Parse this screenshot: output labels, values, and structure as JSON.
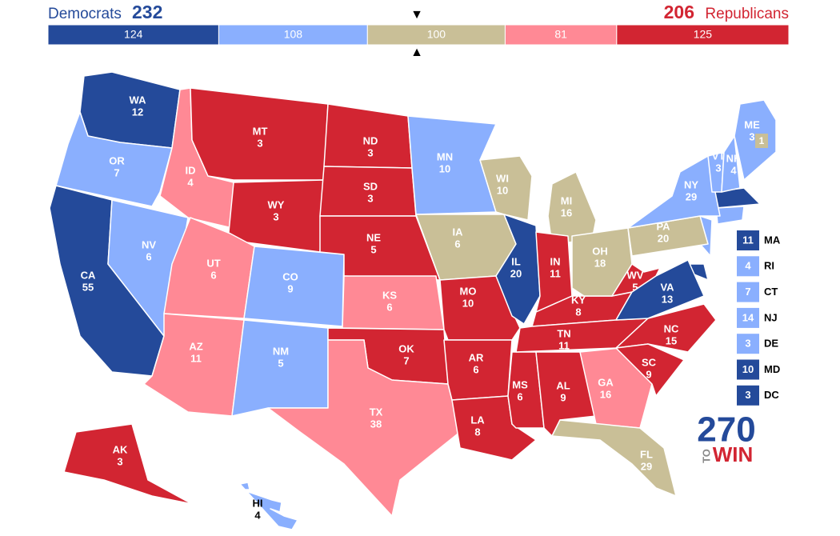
{
  "header": {
    "left_label": "Democrats",
    "left_total": 232,
    "right_total": 206,
    "right_label": "Republicans"
  },
  "bar": {
    "total": 538,
    "segments": [
      {
        "value": 124,
        "color": "#244a9a"
      },
      {
        "value": 108,
        "color": "#8aaffe"
      },
      {
        "value": 100,
        "color": "#c9bf97"
      },
      {
        "value": 81,
        "color": "#ff8995"
      },
      {
        "value": 125,
        "color": "#d22532"
      }
    ]
  },
  "states": [
    {
      "abbr": "WA",
      "votes": 12,
      "color": "#244a9a"
    },
    {
      "abbr": "OR",
      "votes": 7,
      "color": "#8aaffe"
    },
    {
      "abbr": "CA",
      "votes": 55,
      "color": "#244a9a"
    },
    {
      "abbr": "NV",
      "votes": 6,
      "color": "#8aaffe"
    },
    {
      "abbr": "ID",
      "votes": 4,
      "color": "#ff8995"
    },
    {
      "abbr": "MT",
      "votes": 3,
      "color": "#d22532"
    },
    {
      "abbr": "WY",
      "votes": 3,
      "color": "#d22532"
    },
    {
      "abbr": "UT",
      "votes": 6,
      "color": "#ff8995"
    },
    {
      "abbr": "CO",
      "votes": 9,
      "color": "#8aaffe"
    },
    {
      "abbr": "AZ",
      "votes": 11,
      "color": "#ff8995"
    },
    {
      "abbr": "NM",
      "votes": 5,
      "color": "#8aaffe"
    },
    {
      "abbr": "ND",
      "votes": 3,
      "color": "#d22532"
    },
    {
      "abbr": "SD",
      "votes": 3,
      "color": "#d22532"
    },
    {
      "abbr": "NE",
      "votes": 5,
      "color": "#d22532"
    },
    {
      "abbr": "KS",
      "votes": 6,
      "color": "#ff8995"
    },
    {
      "abbr": "OK",
      "votes": 7,
      "color": "#d22532"
    },
    {
      "abbr": "TX",
      "votes": 38,
      "color": "#ff8995"
    },
    {
      "abbr": "MN",
      "votes": 10,
      "color": "#8aaffe"
    },
    {
      "abbr": "IA",
      "votes": 6,
      "color": "#c9bf97"
    },
    {
      "abbr": "MO",
      "votes": 10,
      "color": "#d22532"
    },
    {
      "abbr": "AR",
      "votes": 6,
      "color": "#d22532"
    },
    {
      "abbr": "LA",
      "votes": 8,
      "color": "#d22532"
    },
    {
      "abbr": "WI",
      "votes": 10,
      "color": "#c9bf97"
    },
    {
      "abbr": "IL",
      "votes": 20,
      "color": "#244a9a"
    },
    {
      "abbr": "MS",
      "votes": 6,
      "color": "#d22532"
    },
    {
      "abbr": "MI",
      "votes": 16,
      "color": "#c9bf97"
    },
    {
      "abbr": "IN",
      "votes": 11,
      "color": "#d22532"
    },
    {
      "abbr": "KY",
      "votes": 8,
      "color": "#d22532"
    },
    {
      "abbr": "TN",
      "votes": 11,
      "color": "#d22532"
    },
    {
      "abbr": "AL",
      "votes": 9,
      "color": "#d22532"
    },
    {
      "abbr": "GA",
      "votes": 16,
      "color": "#ff8995"
    },
    {
      "abbr": "FL",
      "votes": 29,
      "color": "#c9bf97"
    },
    {
      "abbr": "OH",
      "votes": 18,
      "color": "#c9bf97"
    },
    {
      "abbr": "WV",
      "votes": 5,
      "color": "#d22532"
    },
    {
      "abbr": "VA",
      "votes": 13,
      "color": "#244a9a"
    },
    {
      "abbr": "NC",
      "votes": 15,
      "color": "#d22532"
    },
    {
      "abbr": "SC",
      "votes": 9,
      "color": "#d22532"
    },
    {
      "abbr": "PA",
      "votes": 20,
      "color": "#c9bf97"
    },
    {
      "abbr": "NY",
      "votes": 29,
      "color": "#8aaffe"
    },
    {
      "abbr": "VT",
      "votes": 3,
      "color": "#8aaffe"
    },
    {
      "abbr": "NH",
      "votes": 4,
      "color": "#8aaffe"
    },
    {
      "abbr": "ME",
      "votes": 3,
      "color": "#8aaffe"
    },
    {
      "abbr": "AK",
      "votes": 3,
      "color": "#d22532"
    },
    {
      "abbr": "HI",
      "votes": 4,
      "color": "#8aaffe"
    }
  ],
  "maine_district": {
    "votes": 1,
    "color": "#c9bf97"
  },
  "small_states": [
    {
      "abbr": "MA",
      "votes": 11,
      "color": "#244a9a"
    },
    {
      "abbr": "RI",
      "votes": 4,
      "color": "#8aaffe"
    },
    {
      "abbr": "CT",
      "votes": 7,
      "color": "#8aaffe"
    },
    {
      "abbr": "NJ",
      "votes": 14,
      "color": "#8aaffe"
    },
    {
      "abbr": "DE",
      "votes": 3,
      "color": "#8aaffe"
    },
    {
      "abbr": "MD",
      "votes": 10,
      "color": "#244a9a"
    },
    {
      "abbr": "DC",
      "votes": 3,
      "color": "#244a9a"
    }
  ],
  "logo": {
    "number": "270",
    "small": "TO",
    "word": "WIN"
  }
}
